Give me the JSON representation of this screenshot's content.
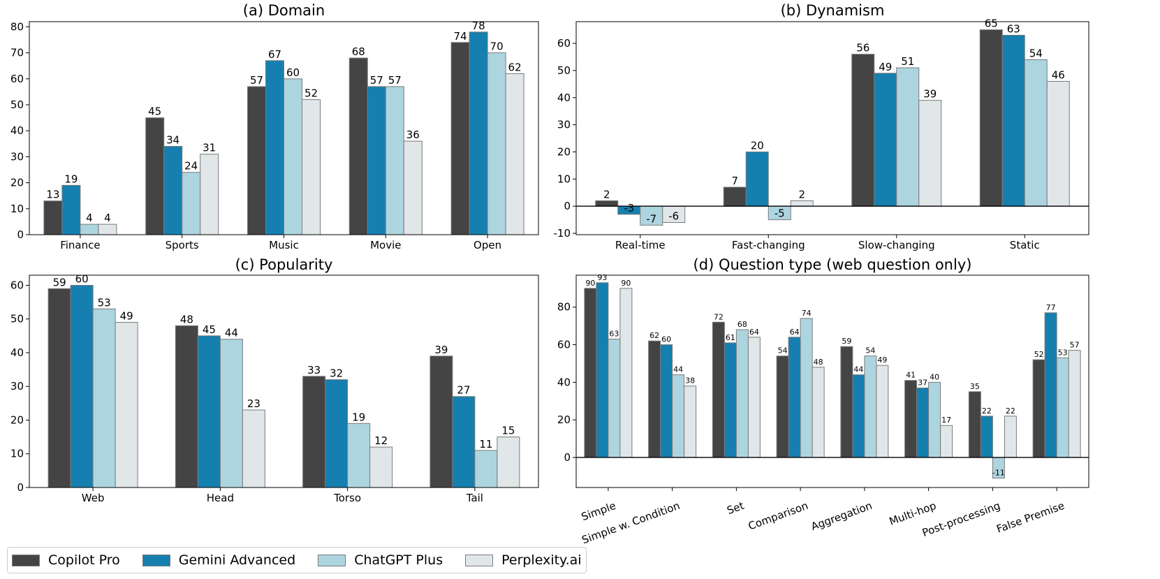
{
  "colors": {
    "Copilot Pro": "#444444",
    "Gemini Advanced": "#157fb0",
    "ChatGPT Plus": "#add5e0",
    "Perplexity.ai": "#e1e6e9"
  },
  "legend": {
    "items": [
      "Copilot Pro",
      "Gemini Advanced",
      "ChatGPT Plus",
      "Perplexity.ai"
    ]
  },
  "chart_data": [
    {
      "type": "bar",
      "title": "(a) Domain",
      "categories": [
        "Finance",
        "Sports",
        "Music",
        "Movie",
        "Open"
      ],
      "series": [
        {
          "name": "Copilot Pro",
          "values": [
            13,
            45,
            57,
            68,
            74
          ]
        },
        {
          "name": "Gemini Advanced",
          "values": [
            19,
            34,
            67,
            57,
            78
          ]
        },
        {
          "name": "ChatGPT Plus",
          "values": [
            4,
            24,
            60,
            57,
            70
          ]
        },
        {
          "name": "Perplexity.ai",
          "values": [
            4,
            31,
            52,
            36,
            62
          ]
        }
      ],
      "ylim": [
        0,
        82
      ],
      "yticks": [
        0,
        10,
        20,
        30,
        40,
        50,
        60,
        70,
        80
      ],
      "xlabel": "",
      "ylabel": ""
    },
    {
      "type": "bar",
      "title": "(b) Dynamism",
      "categories": [
        "Real-time",
        "Fast-changing",
        "Slow-changing",
        "Static"
      ],
      "series": [
        {
          "name": "Copilot Pro",
          "values": [
            2,
            7,
            56,
            65
          ]
        },
        {
          "name": "Gemini Advanced",
          "values": [
            -3,
            20,
            49,
            63
          ]
        },
        {
          "name": "ChatGPT Plus",
          "values": [
            -7,
            -5,
            51,
            54
          ]
        },
        {
          "name": "Perplexity.ai",
          "values": [
            -6,
            2,
            39,
            46
          ]
        }
      ],
      "ylim": [
        -10.5,
        68
      ],
      "yticks": [
        -10,
        0,
        10,
        20,
        30,
        40,
        50,
        60
      ],
      "zero_line": true,
      "xlabel": "",
      "ylabel": ""
    },
    {
      "type": "bar",
      "title": "(c) Popularity",
      "categories": [
        "Web",
        "Head",
        "Torso",
        "Tail"
      ],
      "series": [
        {
          "name": "Copilot Pro",
          "values": [
            59,
            48,
            33,
            39
          ]
        },
        {
          "name": "Gemini Advanced",
          "values": [
            60,
            45,
            32,
            27
          ]
        },
        {
          "name": "ChatGPT Plus",
          "values": [
            53,
            44,
            19,
            11
          ]
        },
        {
          "name": "Perplexity.ai",
          "values": [
            49,
            23,
            12,
            15
          ]
        }
      ],
      "ylim": [
        0,
        63
      ],
      "yticks": [
        0,
        10,
        20,
        30,
        40,
        50,
        60
      ],
      "xlabel": "",
      "ylabel": ""
    },
    {
      "type": "bar",
      "title": "(d) Question type (web question only)",
      "categories": [
        "Simple",
        "Simple w. Condition",
        "Set",
        "Comparison",
        "Aggregation",
        "Multi-hop",
        "Post-processing",
        "False Premise"
      ],
      "series": [
        {
          "name": "Copilot Pro",
          "values": [
            90,
            62,
            72,
            54,
            59,
            41,
            35,
            52
          ]
        },
        {
          "name": "Gemini Advanced",
          "values": [
            93,
            60,
            61,
            64,
            44,
            37,
            22,
            77
          ]
        },
        {
          "name": "ChatGPT Plus",
          "values": [
            63,
            44,
            68,
            74,
            54,
            40,
            -11,
            53
          ]
        },
        {
          "name": "Perplexity.ai",
          "values": [
            90,
            38,
            64,
            48,
            49,
            17,
            22,
            57
          ]
        }
      ],
      "ylim": [
        -16,
        97
      ],
      "yticks": [
        0,
        20,
        40,
        60,
        80
      ],
      "zero_line": true,
      "rotated_xticks": true,
      "xlabel": "",
      "ylabel": ""
    }
  ]
}
